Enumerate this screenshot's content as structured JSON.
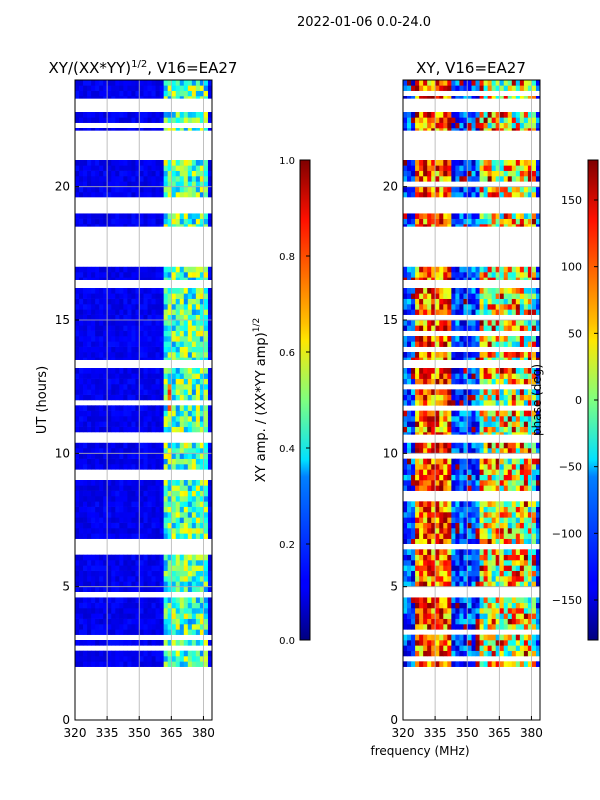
{
  "figure_title": "2022-01-06 0.0-24.0",
  "chart_data": [
    {
      "type": "heatmap",
      "title": "XY/(XX*YY)^1/2, V16=EA27",
      "title_base": "XY/(XX*YY)",
      "title_exponent": "1/2",
      "title_suffix": ", V16=EA27",
      "xlabel": "",
      "ylabel": "UT (hours)",
      "xlim": [
        320,
        384
      ],
      "ylim": [
        0,
        24
      ],
      "xticks": [
        320,
        335,
        350,
        365,
        380
      ],
      "yticks": [
        0,
        5,
        10,
        15,
        20
      ],
      "data_time_range": [
        2.0,
        24.0
      ],
      "grid": true,
      "colormap": "jet",
      "colorbar": {
        "label": "XY amp. / (XX*YY amp)^1/2",
        "label_base": "XY amp. / (XX*YY amp)",
        "label_exponent": "1/2",
        "range": [
          0.0,
          1.0
        ],
        "ticks": [
          "0.0",
          "0.2",
          "0.4",
          "0.6",
          "0.8",
          "1.0"
        ]
      },
      "flagged_time_ranges_hours": [
        [
          21.0,
          22.1
        ],
        [
          22.9,
          23.3
        ],
        [
          19.0,
          19.6
        ],
        [
          17.0,
          18.5
        ],
        [
          16.3,
          16.5
        ],
        [
          13.3,
          13.5
        ],
        [
          10.4,
          10.7
        ],
        [
          6.5,
          6.6
        ],
        [
          4.6,
          4.8
        ]
      ]
    },
    {
      "type": "heatmap",
      "title": "XY, V16=EA27",
      "xlabel": "frequency (MHz)",
      "ylabel": "",
      "xlim": [
        320,
        384
      ],
      "ylim": [
        0,
        24
      ],
      "xticks": [
        320,
        335,
        350,
        365,
        380
      ],
      "yticks": [
        0,
        5,
        10,
        15,
        20
      ],
      "data_time_range": [
        2.0,
        24.0
      ],
      "grid": true,
      "colormap": "jet",
      "colorbar": {
        "label": "phase (deg)",
        "range": [
          -180,
          180
        ],
        "ticks": [
          "−150",
          "−100",
          "−50",
          "0",
          "50",
          "100",
          "150"
        ]
      },
      "flagged_time_ranges_hours": [
        [
          21.0,
          22.1
        ],
        [
          22.9,
          23.3
        ],
        [
          19.0,
          19.6
        ],
        [
          17.0,
          18.5
        ],
        [
          16.3,
          16.5
        ],
        [
          13.3,
          13.5
        ],
        [
          10.4,
          10.7
        ],
        [
          6.5,
          6.6
        ],
        [
          4.6,
          4.8
        ]
      ]
    }
  ]
}
